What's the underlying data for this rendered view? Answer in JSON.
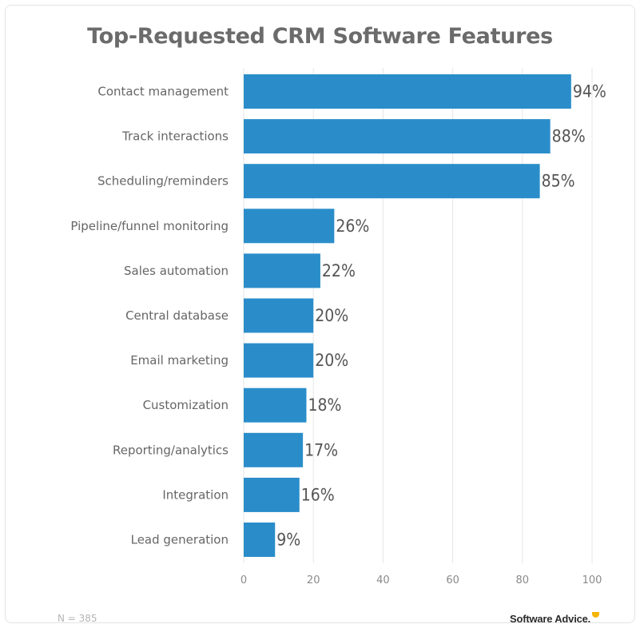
{
  "chart_data": {
    "type": "bar",
    "orientation": "horizontal",
    "title": "Top-Requested CRM Software Features",
    "categories": [
      "Contact management",
      "Track interactions",
      "Scheduling/reminders",
      "Pipeline/funnel monitoring",
      "Sales automation",
      "Central database",
      "Email marketing",
      "Customization",
      "Reporting/analytics",
      "Integration",
      "Lead generation"
    ],
    "values": [
      94,
      88,
      85,
      26,
      22,
      20,
      20,
      18,
      17,
      16,
      9
    ],
    "value_labels": [
      "94%",
      "88%",
      "85%",
      "26%",
      "22%",
      "20%",
      "20%",
      "18%",
      "17%",
      "16%",
      "9%"
    ],
    "xlim": [
      0,
      100
    ],
    "x_ticks": [
      "0",
      "20",
      "40",
      "60",
      "80",
      "100"
    ],
    "grid": "vertical",
    "bar_color": "#2a8dca"
  },
  "footer": {
    "note": "N = 385",
    "brand": "Software Advice."
  }
}
